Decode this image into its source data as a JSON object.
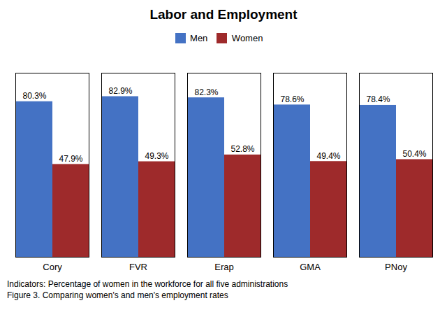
{
  "chart_data": {
    "type": "bar",
    "title": "Labor and Employment",
    "categories": [
      "Cory",
      "FVR",
      "Erap",
      "GMA",
      "PNoy"
    ],
    "series": [
      {
        "name": "Men",
        "color": "#4472C4",
        "values": [
          80.3,
          82.9,
          82.3,
          78.6,
          78.4
        ],
        "value_labels": [
          "80.3%",
          "82.9%",
          "82.3%",
          "78.6%",
          "78.4%"
        ]
      },
      {
        "name": "Women",
        "color": "#9E2A2B",
        "values": [
          47.9,
          49.3,
          52.8,
          49.4,
          50.4
        ],
        "value_labels": [
          "47.9%",
          "49.3%",
          "52.8%",
          "49.4%",
          "50.4%"
        ]
      }
    ],
    "ylim": [
      0,
      95
    ],
    "grid": false,
    "legend": "top",
    "data_labels": true,
    "tick_labels": "x",
    "annotations": [
      "Indicators: Percentage of women in the workforce for all five administrations",
      "Figure 3. Comparing women's and men's employment rates"
    ]
  }
}
